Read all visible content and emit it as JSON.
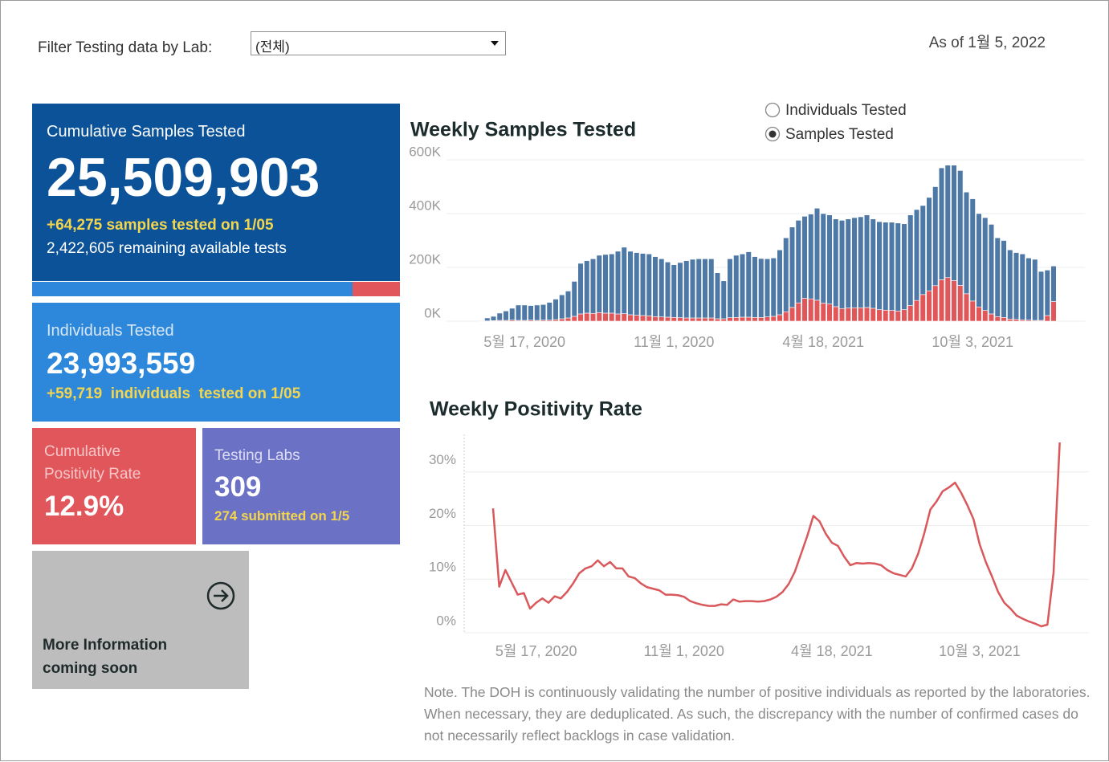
{
  "filter": {
    "label": "Filter Testing data by Lab:",
    "value": "(전체)"
  },
  "as_of": "As of 1월 5, 2022",
  "kpis": {
    "cumulative": {
      "label": "Cumulative Samples Tested",
      "value": "25,509,903",
      "daily": "+64,275 samples tested on 1/05",
      "remaining": "2,422,605 remaining available tests"
    },
    "individuals": {
      "label": "Individuals Tested",
      "value": "23,993,559",
      "daily": "+59,719  individuals  tested on 1/05"
    },
    "positivity": {
      "label": "Cumulative Positivity Rate",
      "value": "12.9%"
    },
    "labs": {
      "label": "Testing Labs",
      "value": "309",
      "submitted": "274 submitted on 1/5"
    },
    "more": {
      "label": "More Information coming soon"
    }
  },
  "toggle": {
    "options": [
      "Individuals Tested",
      "Samples Tested"
    ],
    "selected": 1
  },
  "note": "Note. The DOH is continuously validating the number of positive individuals as reported by the laboratories. When necessary, they are deduplicated. As such, the discrepancy with the number of confirmed cases do not necessarily reflect backlogs in case validation.",
  "chart_data": [
    {
      "type": "bar",
      "stacked": true,
      "title": "Weekly Samples Tested",
      "categories": [
        null,
        null,
        null,
        null,
        null,
        null,
        null,
        "5월 17, 2020",
        null,
        null,
        null,
        null,
        null,
        null,
        null,
        null,
        null,
        null,
        null,
        null,
        null,
        null,
        null,
        null,
        null,
        null,
        null,
        null,
        null,
        null,
        null,
        "11월 1, 2020",
        null,
        null,
        null,
        null,
        null,
        null,
        null,
        null,
        null,
        null,
        null,
        null,
        null,
        null,
        null,
        null,
        null,
        null,
        null,
        null,
        null,
        null,
        null,
        "4월 18, 2021",
        null,
        null,
        null,
        null,
        null,
        null,
        null,
        null,
        null,
        null,
        null,
        null,
        null,
        null,
        null,
        null,
        null,
        null,
        null,
        null,
        null,
        null,
        null,
        "10월 3, 2021",
        null,
        null,
        null,
        null,
        null,
        null,
        null,
        null,
        null,
        null,
        null,
        null,
        null
      ],
      "series": [
        {
          "color": "#e15759",
          "values": [
            1000,
            1000,
            2000,
            3000,
            3000,
            4000,
            3000,
            3000,
            4000,
            3000,
            4000,
            4000,
            6000,
            9000,
            12000,
            18000,
            27000,
            30000,
            29000,
            32000,
            30000,
            30000,
            27000,
            28000,
            24000,
            22000,
            21000,
            20000,
            17000,
            16000,
            15000,
            14000,
            13000,
            12000,
            12000,
            12000,
            12000,
            12000,
            9000,
            9000,
            13000,
            14000,
            15000,
            15000,
            14000,
            14000,
            16000,
            18000,
            24000,
            35000,
            51000,
            68000,
            85000,
            83000,
            78000,
            67000,
            64000,
            54000,
            47000,
            49000,
            50000,
            50000,
            51000,
            48000,
            43000,
            41000,
            40000,
            38000,
            43000,
            58000,
            77000,
            99000,
            113000,
            132000,
            154000,
            162000,
            151000,
            133000,
            102000,
            75000,
            53000,
            40000,
            27000,
            17000,
            14000,
            8000,
            7000,
            5000,
            4000,
            3000,
            3000,
            21000,
            73000
          ]
        },
        {
          "color": "#4e79a7",
          "values": [
            2000,
            11000,
            16000,
            27000,
            35000,
            44000,
            57000,
            57000,
            54000,
            57000,
            58000,
            66000,
            76000,
            89000,
            100000,
            130000,
            188000,
            195000,
            203000,
            213000,
            218000,
            220000,
            233000,
            247000,
            236000,
            233000,
            231000,
            230000,
            223000,
            216000,
            205000,
            196000,
            205000,
            213000,
            218000,
            220000,
            220000,
            220000,
            171000,
            141000,
            219000,
            231000,
            235000,
            243000,
            226000,
            219000,
            216000,
            217000,
            241000,
            275000,
            299000,
            307000,
            305000,
            315000,
            342000,
            333000,
            331000,
            326000,
            328000,
            331000,
            335000,
            338000,
            344000,
            332000,
            327000,
            327000,
            328000,
            327000,
            319000,
            337000,
            338000,
            331000,
            347000,
            368000,
            416000,
            418000,
            429000,
            427000,
            378000,
            380000,
            347000,
            345000,
            333000,
            293000,
            286000,
            257000,
            248000,
            245000,
            231000,
            227000,
            182000,
            169000,
            132000
          ]
        }
      ],
      "ylim": [
        0,
        600000
      ],
      "yticks": [
        {
          "value": 0,
          "label": "0K"
        },
        {
          "value": 200000,
          "label": "200K"
        },
        {
          "value": 400000,
          "label": "400K"
        },
        {
          "value": 600000,
          "label": "600K"
        }
      ],
      "grid": true
    },
    {
      "type": "line",
      "title": "Weekly Positivity Rate",
      "color": "#d9585c",
      "categories": [
        null,
        null,
        null,
        null,
        null,
        null,
        null,
        "5월 17, 2020",
        null,
        null,
        null,
        null,
        null,
        null,
        null,
        null,
        null,
        null,
        null,
        null,
        null,
        null,
        null,
        null,
        null,
        null,
        null,
        null,
        null,
        null,
        null,
        "11월 1, 2020",
        null,
        null,
        null,
        null,
        null,
        null,
        null,
        null,
        null,
        null,
        null,
        null,
        null,
        null,
        null,
        null,
        null,
        null,
        null,
        null,
        null,
        null,
        null,
        "4월 18, 2021",
        null,
        null,
        null,
        null,
        null,
        null,
        null,
        null,
        null,
        null,
        null,
        null,
        null,
        null,
        null,
        null,
        null,
        null,
        null,
        null,
        null,
        null,
        null,
        "10월 3, 2021",
        null,
        null,
        null,
        null,
        null,
        null,
        null,
        null,
        null,
        null,
        null,
        null,
        null
      ],
      "values": [
        23.2,
        8.6,
        11.7,
        9.4,
        7.1,
        7.4,
        4.5,
        5.6,
        6.4,
        5.6,
        6.8,
        6.4,
        7.6,
        9.2,
        11.1,
        12.0,
        12.4,
        13.5,
        12.4,
        13.2,
        12.0,
        12.0,
        10.5,
        10.2,
        9.2,
        8.5,
        8.2,
        7.9,
        7.1,
        7.1,
        7.0,
        6.7,
        5.9,
        5.5,
        5.2,
        5.0,
        5.0,
        5.3,
        5.2,
        6.2,
        5.8,
        5.9,
        5.9,
        5.8,
        5.9,
        6.2,
        6.7,
        7.6,
        9.1,
        11.4,
        14.7,
        18.0,
        21.8,
        20.8,
        18.5,
        16.8,
        16.2,
        14.2,
        12.6,
        13.0,
        12.9,
        13.0,
        12.9,
        12.6,
        11.7,
        11.1,
        10.8,
        10.5,
        12.0,
        14.7,
        18.5,
        23.0,
        24.5,
        26.4,
        27.1,
        28.0,
        26.1,
        23.8,
        21.2,
        16.5,
        13.2,
        10.5,
        7.6,
        5.6,
        4.5,
        3.2,
        2.6,
        2.1,
        1.7,
        1.2,
        1.5,
        11.2,
        35.5
      ],
      "ylim": [
        0,
        37
      ],
      "yticks": [
        {
          "value": 0,
          "label": "0%"
        },
        {
          "value": 10,
          "label": "10%"
        },
        {
          "value": 20,
          "label": "20%"
        },
        {
          "value": 30,
          "label": "30%"
        }
      ],
      "grid": true
    }
  ]
}
